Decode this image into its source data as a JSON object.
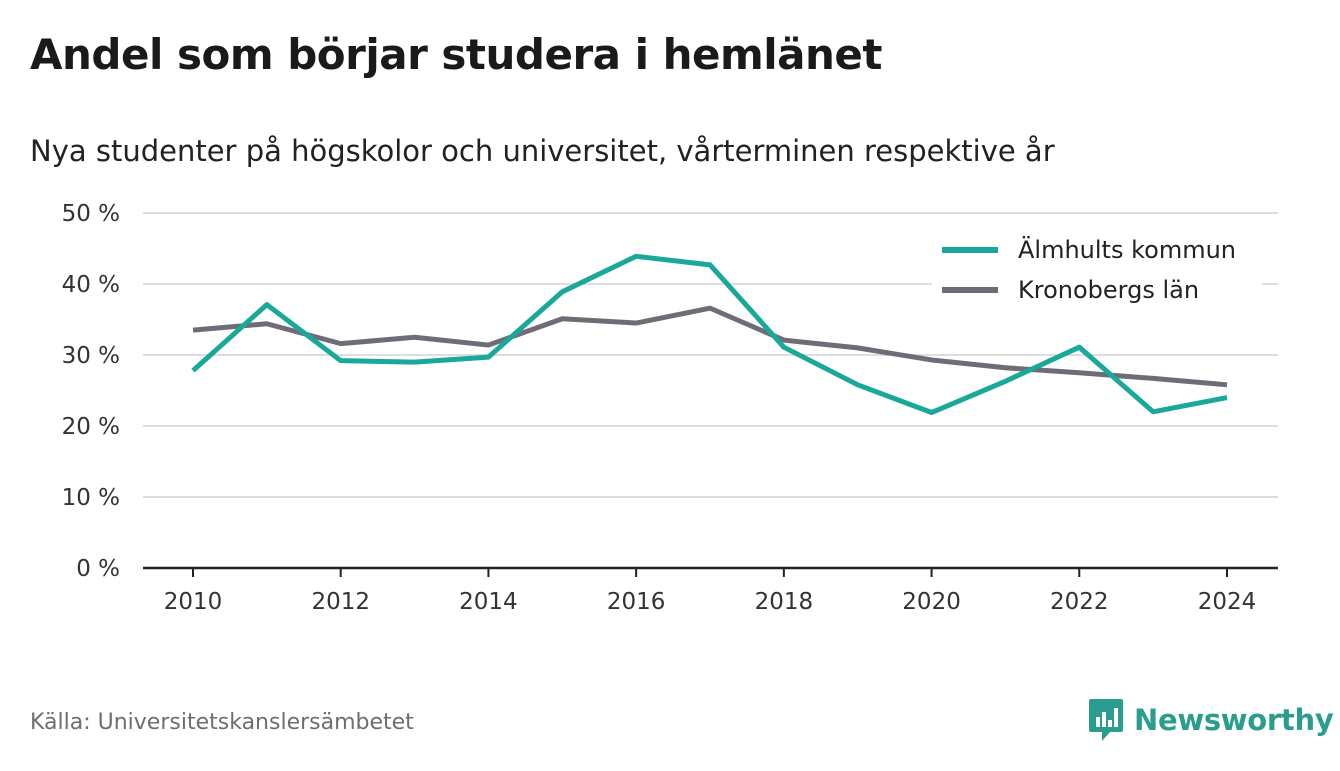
{
  "header": {
    "title": "Andel som börjar studera i hemlänet",
    "subtitle": "Nya studenter på högskolor och universitet, vårterminen respektive år"
  },
  "chart_data": {
    "type": "line",
    "title": "Andel som börjar studera i hemlänet",
    "subtitle": "Nya studenter på högskolor och universitet, vårterminen respektive år",
    "x": [
      2010,
      2011,
      2012,
      2013,
      2014,
      2015,
      2016,
      2017,
      2018,
      2019,
      2020,
      2021,
      2022,
      2023,
      2024
    ],
    "x_ticks": [
      "2010",
      "2012",
      "2014",
      "2016",
      "2018",
      "2020",
      "2022",
      "2024"
    ],
    "y_ticks": [
      "0 %",
      "10 %",
      "20 %",
      "30 %",
      "40 %",
      "50 %"
    ],
    "ylim": [
      0,
      50
    ],
    "y_unit": "%",
    "grid": "horizontal",
    "legend_position": "top-right",
    "series": [
      {
        "name": "Älmhults kommun",
        "color": "#1aa89a",
        "values": [
          27.8,
          37.1,
          29.2,
          29.0,
          29.7,
          38.9,
          43.9,
          42.7,
          31.1,
          25.8,
          21.9,
          26.3,
          31.1,
          22.0,
          24.0
        ]
      },
      {
        "name": "Kronobergs län",
        "color": "#6e6d75",
        "values": [
          33.5,
          34.4,
          31.6,
          32.5,
          31.4,
          35.1,
          34.5,
          36.6,
          32.1,
          31.0,
          29.3,
          28.2,
          27.5,
          26.7,
          25.8
        ]
      }
    ]
  },
  "footer": {
    "source": "Källa: Universitetskanslersämbetet",
    "brand": "Newsworthy",
    "brand_color": "#2a9d8f"
  }
}
